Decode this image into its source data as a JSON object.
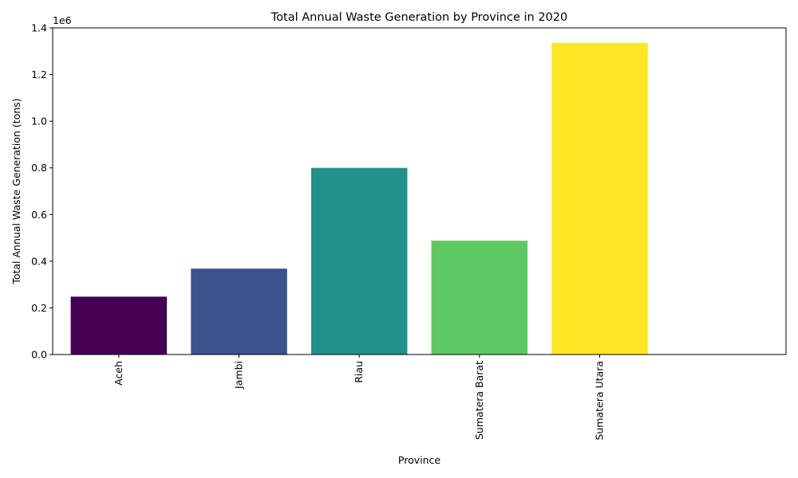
{
  "chart_data": {
    "type": "bar",
    "title": "Total Annual Waste Generation by Province in 2020",
    "xlabel": "Province",
    "ylabel": "Total Annual Waste Generation (tons)",
    "y_offset_label": "1e6",
    "categories": [
      "Aceh",
      "Jambi",
      "Riau",
      "Sumatera Barat",
      "Sumatera Utara"
    ],
    "values": [
      248000,
      368000,
      800000,
      488000,
      1335000
    ],
    "colors": [
      "#440154",
      "#3b528b",
      "#21918c",
      "#5ec962",
      "#fde725"
    ],
    "ylim": [
      0,
      1400000
    ],
    "yticks": [
      0,
      200000,
      400000,
      600000,
      800000,
      1000000,
      1200000,
      1400000
    ],
    "ytick_labels": [
      "0.0",
      "0.2",
      "0.4",
      "0.6",
      "0.8",
      "1.0",
      "1.2",
      "1.4"
    ],
    "grid": false,
    "legend": "none"
  }
}
